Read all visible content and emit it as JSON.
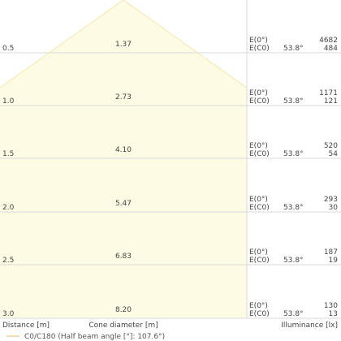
{
  "colors": {
    "cone_fill": "#fdfbe3",
    "cone_edge": "#f5e6a8",
    "grid": "#d9d9d9",
    "legend_line": "#f0b870"
  },
  "chart_data": {
    "type": "cone_diagram",
    "half_beam_angle_deg": 107.6,
    "x_axis_title": "Distance [m]",
    "middle_axis_title": "Cone diameter [m]",
    "right_axis_title": "Illuminance [lx]",
    "legend_label": "C0/C180 (Half beam angle [°]: 107.6°)",
    "angle_label": "53.8°",
    "e0_label": "E(0°)",
    "ec0_label": "E(C0)",
    "rows": [
      {
        "distance": "0.5",
        "diameter": "1.37",
        "e0": "4682",
        "ec0": "484"
      },
      {
        "distance": "1.0",
        "diameter": "2.73",
        "e0": "1171",
        "ec0": "121"
      },
      {
        "distance": "1.5",
        "diameter": "4.10",
        "e0": "520",
        "ec0": "54"
      },
      {
        "distance": "2.0",
        "diameter": "5.47",
        "e0": "293",
        "ec0": "30"
      },
      {
        "distance": "2.5",
        "diameter": "6.83",
        "e0": "187",
        "ec0": "19"
      },
      {
        "distance": "3.0",
        "diameter": "8.20",
        "e0": "130",
        "ec0": "13"
      }
    ]
  }
}
